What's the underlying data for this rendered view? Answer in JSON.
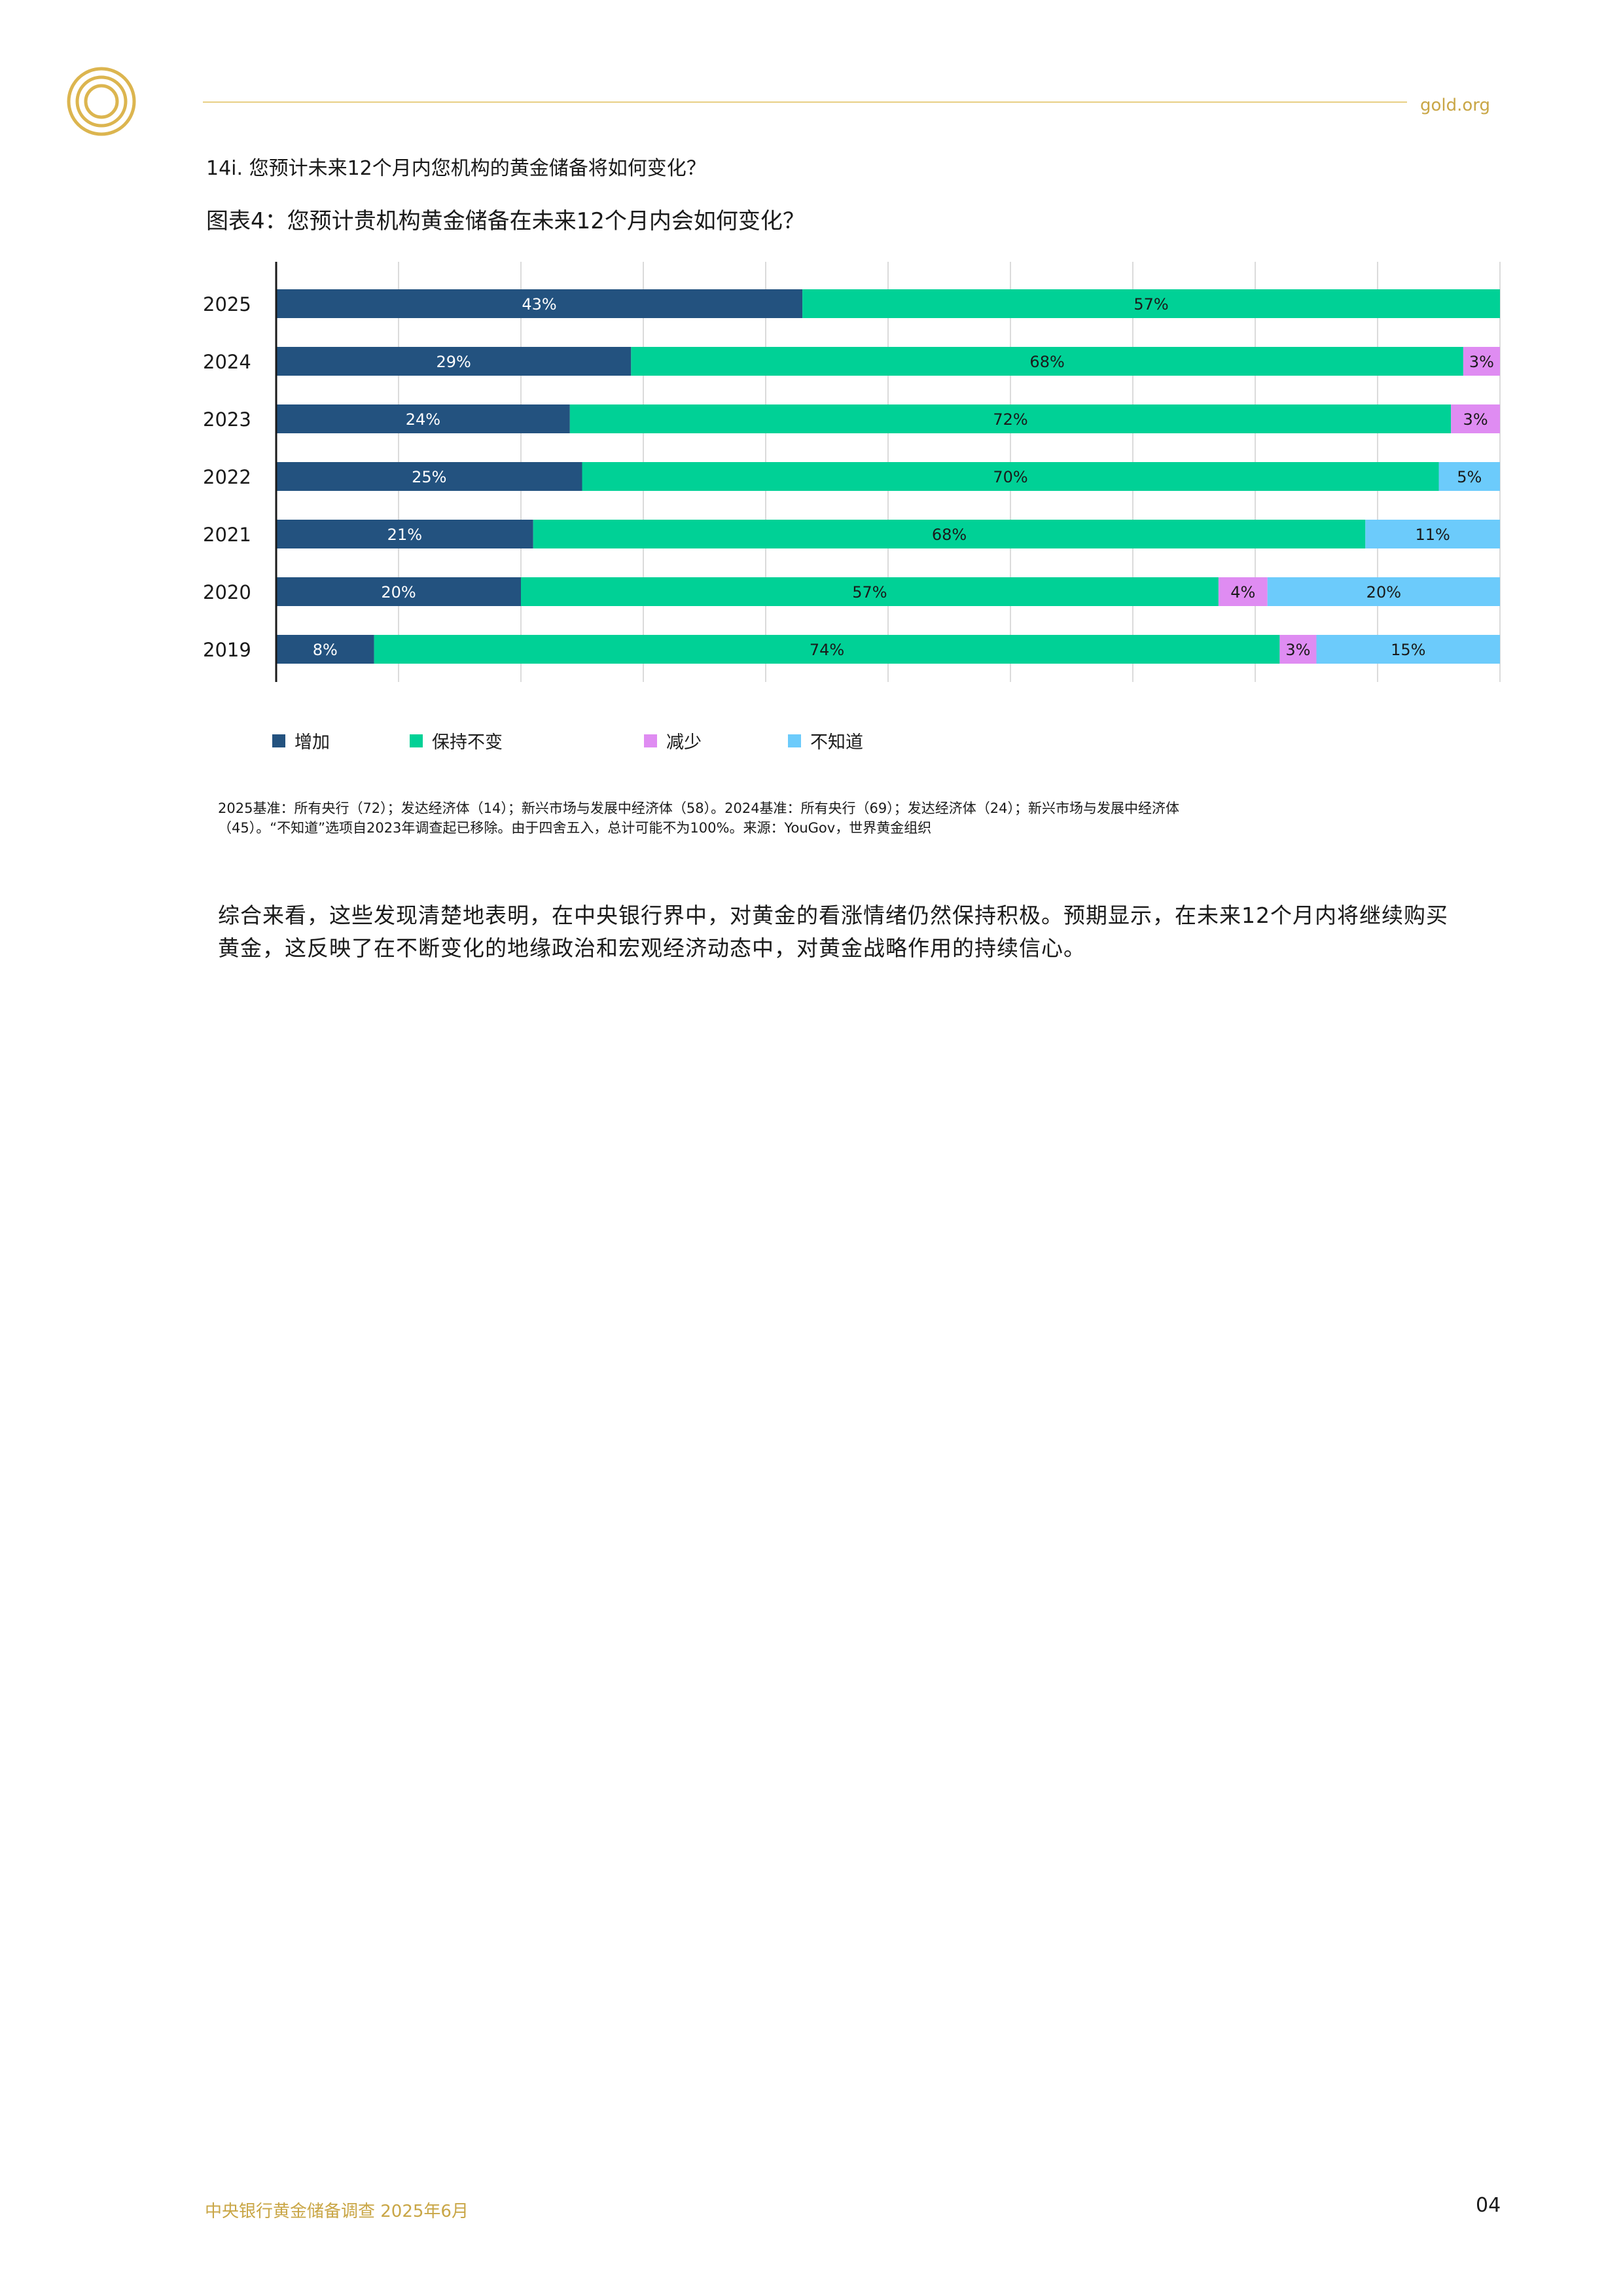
{
  "header": {
    "site": "gold.org"
  },
  "question": "14i. 您预计未来12个月内您机构的黄金储备将如何变化？",
  "chart_title": "图表4：您预计贵机构黄金储备在未来12个月内会如何变化？",
  "chart_data": {
    "type": "bar",
    "orientation": "horizontal",
    "stacked": true,
    "categories": [
      "2025",
      "2024",
      "2023",
      "2022",
      "2021",
      "2020",
      "2019"
    ],
    "series": [
      {
        "name": "增加",
        "color": "#23527f",
        "values": [
          43,
          29,
          24,
          25,
          21,
          20,
          8
        ]
      },
      {
        "name": "保持不变",
        "color": "#00d196",
        "values": [
          57,
          68,
          72,
          70,
          68,
          57,
          74
        ]
      },
      {
        "name": "减少",
        "color": "#df8cf2",
        "values": [
          0,
          3,
          3,
          0,
          0,
          4,
          3
        ]
      },
      {
        "name": "不知道",
        "color": "#6ccbfb",
        "values": [
          0,
          0,
          0,
          5,
          11,
          20,
          15
        ]
      }
    ],
    "value_labels": [
      [
        "43%",
        "57%",
        "",
        ""
      ],
      [
        "29%",
        "68%",
        "3%",
        ""
      ],
      [
        "24%",
        "72%",
        "3%",
        ""
      ],
      [
        "25%",
        "70%",
        "",
        "5%"
      ],
      [
        "21%",
        "68%",
        "",
        "11%"
      ],
      [
        "20%",
        "57%",
        "4%",
        "20%"
      ],
      [
        "8%",
        "74%",
        "3%",
        "15%"
      ]
    ],
    "xlim": [
      0,
      100
    ],
    "grid": true,
    "legend_position": "bottom"
  },
  "legend": [
    {
      "label": "增加",
      "color": "#23527f"
    },
    {
      "label": "保持不变",
      "color": "#00d196"
    },
    {
      "label": "减少",
      "color": "#df8cf2"
    },
    {
      "label": "不知道",
      "color": "#6ccbfb"
    }
  ],
  "notes": {
    "line1": "2025基准：所有央行（72）；发达经济体（14）；新兴市场与发展中经济体（58）。2024基准：所有央行（69）；发达经济体（24）；新兴市场与发展中经济体",
    "line2": "（45）。“不知道”选项自2023年调查起已移除。由于四舍五入，总计可能不为100%。来源：YouGov，世界黄金组织"
  },
  "body": {
    "line1": "综合来看，这些发现清楚地表明，在中央银行界中，对黄金的看涨情绪仍然保持积极。预期显示，在未来12个月内将继续购买",
    "line2": "黄金，这反映了在不断变化的地缘政治和宏观经济动态中，对黄金战略作用的持续信心。"
  },
  "footer": {
    "report": "中央银行黄金储备调查 2025年6月",
    "page": "04"
  },
  "colors": {
    "gold_accent": "#c9a646",
    "rule": "#e8cf85"
  }
}
